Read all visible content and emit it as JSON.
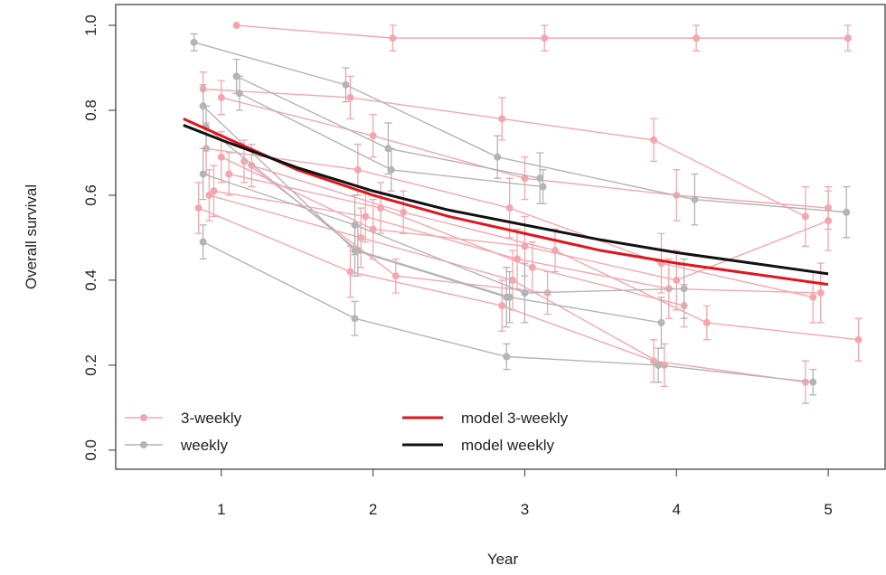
{
  "chart_data": {
    "type": "line",
    "xlabel": "Year",
    "ylabel": "Overall survival",
    "xlim": [
      0.304,
      5.375
    ],
    "ylim": [
      -0.045,
      1.049
    ],
    "xticks": [
      1,
      2,
      3,
      4,
      5
    ],
    "yticks": [
      {
        "value": 0,
        "label": "0.0"
      },
      0.2,
      0.4,
      0.6,
      0.8,
      {
        "value": 1,
        "label": "1.0"
      }
    ],
    "legend": [
      {
        "name": "3-weekly",
        "color": "#f4a6ae"
      },
      {
        "name": "weekly",
        "color": "#b4b4b4"
      }
    ],
    "studies": [
      {
        "color": "#f4a6ae",
        "x": [
          1.1,
          2.13,
          3.13,
          4.13,
          5.13
        ],
        "values": [
          1.0,
          0.97,
          0.97,
          0.97,
          0.97
        ],
        "errors": [
          0,
          0.03,
          0.03,
          0.03,
          0.03
        ]
      },
      {
        "color": "#f4a6ae",
        "x": [
          0.88,
          1.85,
          2.85,
          3.85,
          4.85
        ],
        "values": [
          0.85,
          0.83,
          0.78,
          0.73,
          0.55
        ],
        "errors": [
          0.04,
          0.05,
          0.05,
          0.05,
          0.07
        ]
      },
      {
        "color": "#f4a6ae",
        "x": [
          1.0,
          2.0,
          3.0,
          4.0,
          5.0
        ],
        "values": [
          0.83,
          0.74,
          0.64,
          0.6,
          0.57
        ],
        "errors": [
          0.04,
          0.05,
          0.05,
          0.06,
          0.05
        ]
      },
      {
        "color": "#f4a6ae",
        "x": [
          0.9,
          1.9,
          2.9,
          3.9,
          4.9
        ],
        "values": [
          0.71,
          0.66,
          0.57,
          0.44,
          0.36
        ],
        "errors": [
          0.06,
          0.06,
          0.07,
          0.07,
          0.06
        ]
      },
      {
        "color": "#f4a6ae",
        "x": [
          0.85,
          1.85,
          2.85,
          3.85,
          4.85
        ],
        "values": [
          0.57,
          0.42,
          0.34,
          0.21,
          0.16
        ],
        "errors": [
          0.06,
          0.06,
          0.06,
          0.05,
          0.05
        ]
      },
      {
        "color": "#f4a6ae",
        "x": [
          1.0,
          2.0,
          3.0,
          4.0,
          5.0
        ],
        "values": [
          0.69,
          0.52,
          0.48,
          0.4,
          0.54
        ],
        "errors": [
          0.06,
          0.07,
          0.07,
          0.07,
          0.07
        ]
      },
      {
        "color": "#f4a6ae",
        "x": [
          0.95,
          1.95,
          2.95,
          3.95,
          4.95
        ],
        "values": [
          0.61,
          0.55,
          0.45,
          0.38,
          0.37
        ],
        "errors": [
          0.06,
          0.06,
          0.07,
          0.07,
          0.07
        ]
      },
      {
        "color": "#f4a6ae",
        "x": [
          1.15,
          2.15,
          3.15
        ],
        "values": [
          0.68,
          0.41,
          0.37
        ],
        "errors": [
          0.05,
          0.04,
          0.05
        ]
      },
      {
        "color": "#f4a6ae",
        "x": [
          1.2,
          2.2,
          3.2,
          4.2,
          5.2
        ],
        "values": [
          0.67,
          0.56,
          0.47,
          0.3,
          0.26
        ],
        "errors": [
          0.05,
          0.05,
          0.05,
          0.04,
          0.05
        ]
      },
      {
        "color": "#f4a6ae",
        "x": [
          0.92,
          1.92,
          2.92,
          3.92
        ],
        "values": [
          0.6,
          0.5,
          0.4,
          0.2
        ],
        "errors": [
          0.06,
          0.07,
          0.07,
          0.05
        ]
      },
      {
        "color": "#f4a6ae",
        "x": [
          1.05,
          2.05,
          3.05,
          4.05
        ],
        "values": [
          0.65,
          0.57,
          0.43,
          0.34
        ],
        "errors": [
          0.05,
          0.06,
          0.06,
          0.05
        ]
      },
      {
        "color": "#b4b4b4",
        "x": [
          0.82,
          1.82,
          2.82,
          4.12,
          5.12
        ],
        "values": [
          0.96,
          0.86,
          0.69,
          0.59,
          0.56
        ],
        "errors": [
          0.02,
          0.04,
          0.05,
          0.06,
          0.06
        ]
      },
      {
        "color": "#b4b4b4",
        "x": [
          1.1,
          2.1,
          3.1
        ],
        "values": [
          0.88,
          0.71,
          0.64
        ],
        "errors": [
          0.04,
          0.06,
          0.06
        ]
      },
      {
        "color": "#b4b4b4",
        "x": [
          1.12,
          2.12,
          3.12
        ],
        "values": [
          0.84,
          0.66,
          0.62
        ],
        "errors": [
          0.04,
          0.05,
          0.04
        ]
      },
      {
        "color": "#b4b4b4",
        "x": [
          0.88,
          1.88,
          2.88
        ],
        "values": [
          0.81,
          0.47,
          0.36
        ],
        "errors": [
          0.05,
          0.06,
          0.07
        ]
      },
      {
        "color": "#b4b4b4",
        "x": [
          0.88,
          1.88,
          3.0,
          4.05
        ],
        "values": [
          0.65,
          0.53,
          0.37,
          0.38
        ],
        "errors": [
          0.06,
          0.07,
          0.07,
          0.07
        ]
      },
      {
        "color": "#b4b4b4",
        "x": [
          0.88,
          1.88,
          2.88,
          3.88,
          4.9
        ],
        "values": [
          0.49,
          0.31,
          0.22,
          0.2,
          0.16
        ],
        "errors": [
          0.04,
          0.04,
          0.03,
          0.04,
          0.03
        ]
      },
      {
        "color": "#b4b4b4",
        "x": [
          0.9,
          1.9,
          2.9,
          3.9
        ],
        "values": [
          0.76,
          0.47,
          0.36,
          0.3
        ],
        "errors": [
          0.05,
          0.06,
          0.06,
          0.06
        ]
      }
    ],
    "series": [
      {
        "name": "model 3-weekly",
        "color": "#e0161e",
        "x": [
          0.75,
          1,
          1.5,
          2,
          2.5,
          3,
          3.5,
          4,
          4.5,
          5
        ],
        "values": [
          0.78,
          0.74,
          0.66,
          0.6,
          0.55,
          0.51,
          0.47,
          0.44,
          0.415,
          0.39
        ]
      },
      {
        "name": "model weekly",
        "color": "#111111",
        "x": [
          0.75,
          1,
          1.5,
          2,
          2.5,
          3,
          3.5,
          4,
          4.5,
          5
        ],
        "values": [
          0.765,
          0.73,
          0.665,
          0.61,
          0.565,
          0.53,
          0.495,
          0.465,
          0.44,
          0.415
        ]
      }
    ]
  }
}
